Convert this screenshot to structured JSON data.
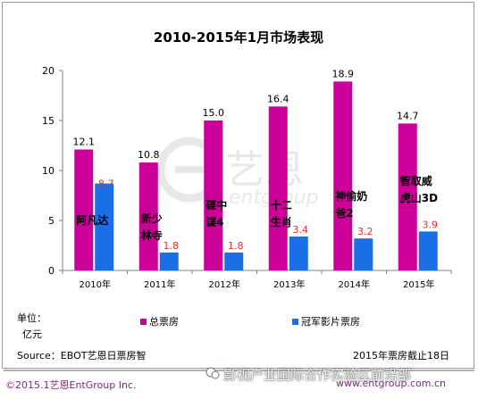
{
  "chart_data": {
    "type": "bar",
    "title": "2010-2015年1月市场表现",
    "categories": [
      "2010年",
      "2011年",
      "2012年",
      "2013年",
      "2014年",
      "2015年"
    ],
    "series": [
      {
        "name": "总票房",
        "color": "#cc0099",
        "values": [
          12.1,
          10.8,
          15.0,
          16.4,
          18.9,
          14.7
        ]
      },
      {
        "name": "冠军影片票房",
        "color": "#1a6fe6",
        "values": [
          8.7,
          1.8,
          1.8,
          3.4,
          3.2,
          3.9
        ]
      }
    ],
    "champion_films": [
      [
        "阿凡达"
      ],
      [
        "新少",
        "林寺"
      ],
      [
        "碟中",
        "谍4"
      ],
      [
        "十二",
        "生肖"
      ],
      [
        "神偷奶",
        "爸2"
      ],
      [
        "智取威",
        "虎山3D"
      ]
    ],
    "ylim": [
      0,
      20
    ],
    "yticks": [
      0,
      5,
      10,
      15,
      20
    ],
    "unit_label": [
      "单位：",
      "亿元"
    ],
    "legend_position": "bottom",
    "grid": false
  },
  "source": "Source：EBOT艺恩日票房智",
  "note": "2015年票房截止18日",
  "watermark": {
    "brand_cn": "艺恩",
    "brand_en": "entgroup"
  },
  "footer": {
    "copyright": "©2015.1艺恩EntGroup Inc.",
    "website": "www.entgroup.com.cn",
    "overlay": "影视产业国际合作实验区前沿部"
  }
}
